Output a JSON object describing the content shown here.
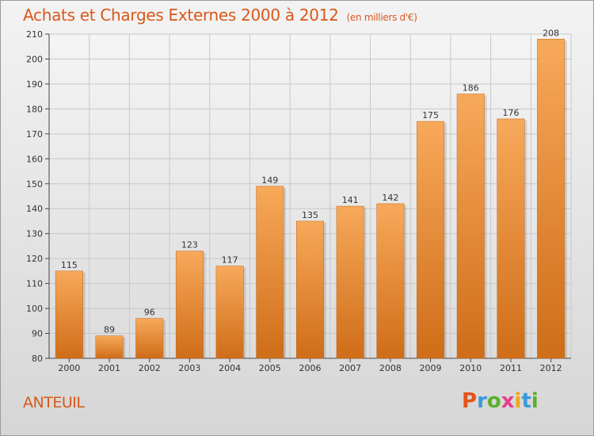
{
  "header": {
    "title": "Achats et Charges Externes 2000 à 2012",
    "subtitle": "(en milliers d'€)"
  },
  "footer": {
    "commune": "ANTEUIL",
    "logo_text": "Proxiti"
  },
  "colors": {
    "title": "#d9581a",
    "bar_top": "#f7a95a",
    "bar_bottom": "#cf6d18",
    "grid": "#c8c8c8"
  },
  "chart_data": {
    "type": "bar",
    "categories": [
      "2000",
      "2001",
      "2002",
      "2003",
      "2004",
      "2005",
      "2006",
      "2007",
      "2008",
      "2009",
      "2010",
      "2011",
      "2012"
    ],
    "values": [
      115,
      89,
      96,
      123,
      117,
      149,
      135,
      141,
      142,
      175,
      186,
      176,
      208
    ],
    "title": "Achats et Charges Externes 2000 à 2012",
    "subtitle": "(en milliers d'€)",
    "xlabel": "",
    "ylabel": "",
    "ylim": [
      80,
      210
    ],
    "yticks": [
      80,
      90,
      100,
      110,
      120,
      130,
      140,
      150,
      160,
      170,
      180,
      190,
      200,
      210
    ],
    "grid": true,
    "data_labels": true
  }
}
